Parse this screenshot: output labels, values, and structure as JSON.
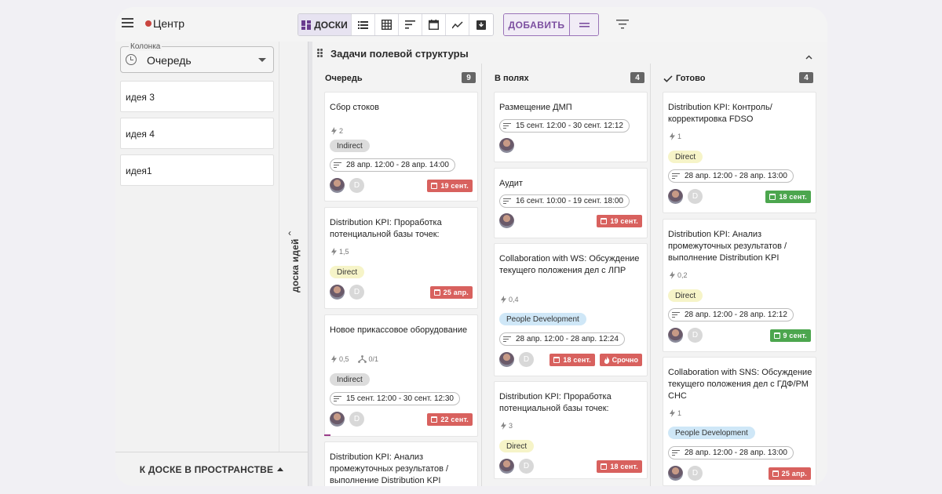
{
  "app": {
    "title": "Центр"
  },
  "toolbar": {
    "boards_label": "ДОСКИ",
    "add_label": "ДОБАВИТЬ"
  },
  "sidebar": {
    "column_label": "Колонка",
    "column_value": "Очередь",
    "ideas": [
      {
        "label": "идея 3"
      },
      {
        "label": "идея 4"
      },
      {
        "label": "идея1"
      }
    ],
    "rail_label": "доска идей",
    "to_space_label": "К ДОСКЕ В ПРОСТРАНСТВЕ"
  },
  "board": {
    "group_title": "Задачи полевой структуры",
    "columns": [
      {
        "title": "Очередь",
        "count": "9",
        "cards": [
          {
            "title": "Сбор стоков",
            "effort": "2",
            "tag": "Indirect",
            "range": "28 апр. 12:00 - 28 апр. 14:00",
            "due": "19 сент."
          },
          {
            "title": "Distribution KPI: Проработка потенциальной базы точек:",
            "effort": "1,5",
            "tag": "Direct",
            "due": "25 апр."
          },
          {
            "title": "Новое прикассовое оборудование",
            "effort": "0,5",
            "subtasks": "0/1",
            "tag": "Indirect",
            "range": "15 сент. 12:00 - 30 сент. 12:30",
            "due": "22 сент."
          },
          {
            "title": "Distribution KPI: Анализ промежуточных результатов / выполнение Distribution KPI"
          }
        ]
      },
      {
        "title": "В полях",
        "count": "4",
        "cards": [
          {
            "title": "Размещение ДМП",
            "range": "15 сент. 12:00 - 30 сент. 12:12"
          },
          {
            "title": "Аудит",
            "range": "16 сент. 10:00 - 19 сент. 18:00",
            "due": "19 сент."
          },
          {
            "title": "Collaboration with WS: Обсуждение текущего положения дел с ЛПР",
            "effort": "0,4",
            "tag": "People Development",
            "range": "28 апр. 12:00 - 28 апр. 12:24",
            "due": "18 сент.",
            "urgent": "Срочно"
          },
          {
            "title": "Distribution KPI: Проработка потенциальной базы точек:",
            "effort": "3",
            "tag": "Direct",
            "due": "18 сент."
          }
        ]
      },
      {
        "title": "Готово",
        "count": "4",
        "cards": [
          {
            "title": "Distribution KPI: Контроль/корректировка FDSO",
            "effort": "1",
            "tag": "Direct",
            "range": "28 апр. 12:00 - 28 апр. 13:00",
            "due": "18 сент."
          },
          {
            "title": "Distribution KPI: Анализ промежуточных результатов / выполнение Distribution KPI",
            "effort": "0,2",
            "tag": "Direct",
            "range": "28 апр. 12:00 - 28 апр. 12:12",
            "due": "9 сент."
          },
          {
            "title": "Collaboration with SNS: Обсуждение текущего положения дел с ГДФ/РМ СНС",
            "effort": "1",
            "tag": "People Development",
            "range": "28 апр. 12:00 - 28 апр. 13:00",
            "due": "25 апр."
          }
        ]
      }
    ]
  },
  "avatar_letter": "D",
  "colors": {
    "accent": "#7c4fa0",
    "due_red": "#d8615e",
    "due_green": "#4ca64e"
  }
}
